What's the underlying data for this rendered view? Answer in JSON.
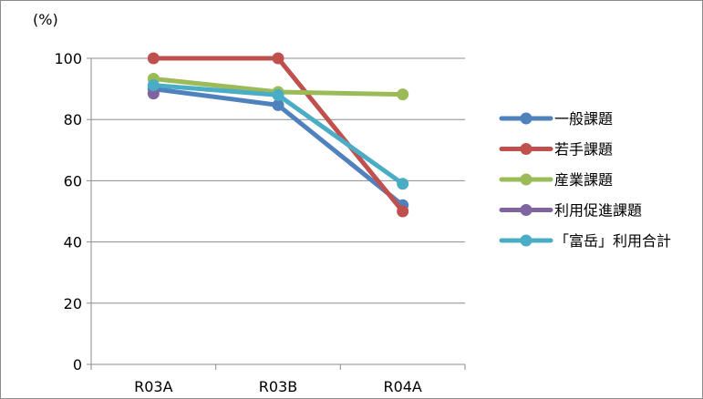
{
  "chart_data": {
    "type": "line",
    "title": "",
    "xlabel": "",
    "ylabel": "",
    "unit_label": "(%)",
    "categories": [
      "R03A",
      "R03B",
      "R04A"
    ],
    "ylim": [
      0,
      100
    ],
    "yticks": [
      0,
      20,
      40,
      60,
      80,
      100
    ],
    "grid": "horizontal",
    "legend_position": "right",
    "series": [
      {
        "name": "一般課題",
        "values": [
          90,
          84.7,
          52
        ],
        "color": "#4f81bd"
      },
      {
        "name": "若手課題",
        "values": [
          100,
          100,
          50
        ],
        "color": "#c0504d"
      },
      {
        "name": "産業課題",
        "values": [
          93.3,
          89,
          88.2
        ],
        "color": "#9bbb59"
      },
      {
        "name": "利用促進課題",
        "values": [
          88.5,
          null,
          null
        ],
        "color": "#8064a2"
      },
      {
        "name": "「富岳」利用合計",
        "values": [
          91.2,
          88,
          59
        ],
        "color": "#4bacc6"
      }
    ]
  }
}
